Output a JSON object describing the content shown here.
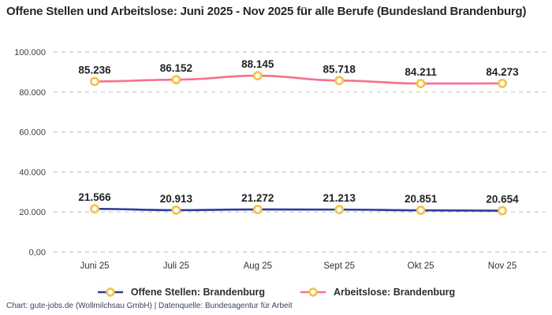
{
  "title": "Offene Stellen und Arbeitslose: Juni 2025 - Nov 2025 für alle Berufe (Bundesland Brandenburg)",
  "footer": "Chart: gute-jobs.de (Wollmilchsau GmbH) | Datenquelle: Bundesagentur für Arbeit",
  "colors": {
    "open_positions_line": "#2B3B9C",
    "unemployed_line": "#F7708C",
    "marker_ring": "#F7C13D",
    "marker_fill": "#FFFFFF",
    "grid": "#C9C9C9",
    "title_text": "#262626",
    "data_label_text": "#222222",
    "axis_text": "#3D3D3D",
    "footer_text": "#37455C",
    "background": "#FFFFFF"
  },
  "chart_data": {
    "type": "line",
    "title": "Offene Stellen und Arbeitslose: Juni 2025 - Nov 2025 für alle Berufe (Bundesland Brandenburg)",
    "categories": [
      "Juni 25",
      "Juli 25",
      "Aug 25",
      "Sept 25",
      "Okt 25",
      "Nov 25"
    ],
    "series": [
      {
        "name": "Offene Stellen: Brandenburg",
        "values": [
          21566,
          20913,
          21272,
          21213,
          20851,
          20654
        ],
        "labels": [
          "21.566",
          "20.913",
          "21.272",
          "21.213",
          "20.851",
          "20.654"
        ],
        "color": "#2B3B9C"
      },
      {
        "name": "Arbeitslose: Brandenburg",
        "values": [
          85236,
          86152,
          88145,
          85718,
          84211,
          84273
        ],
        "labels": [
          "85.236",
          "86.152",
          "88.145",
          "85.718",
          "84.211",
          "84.273"
        ],
        "color": "#F7708C"
      }
    ],
    "y_ticks": [
      "0,00",
      "20.000",
      "40.000",
      "60.000",
      "80.000",
      "100.000"
    ],
    "y_tick_values": [
      0,
      20000,
      40000,
      60000,
      80000,
      100000
    ],
    "ylim": [
      0,
      100000
    ],
    "grid": "horizontal-dashed",
    "legend_position": "bottom",
    "marker": "circle-ring"
  }
}
